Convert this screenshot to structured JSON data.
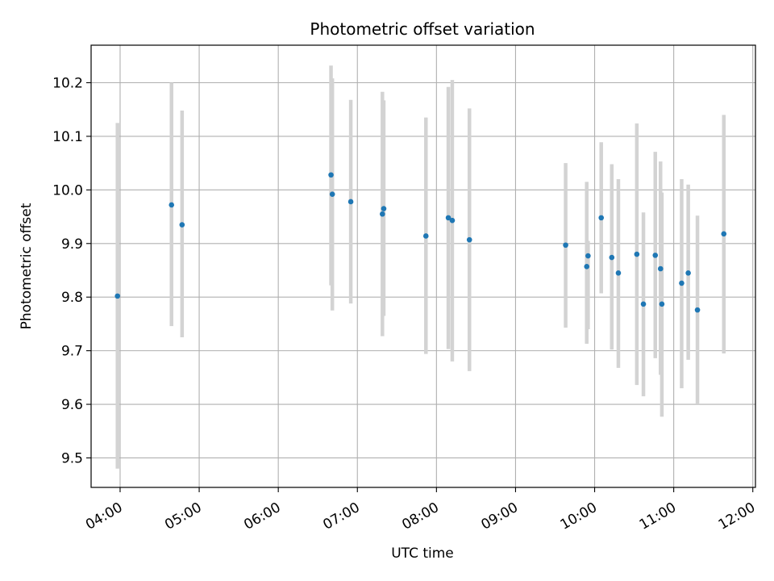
{
  "chart_data": {
    "type": "scatter",
    "title": "Photometric offset variation",
    "xlabel": "UTC time",
    "ylabel": "Photometric offset",
    "grid": true,
    "error_bars": true,
    "xlim": [
      "03:38",
      "12:02"
    ],
    "ylim": [
      9.445,
      10.27
    ],
    "x_ticks": [
      "04:00",
      "05:00",
      "06:00",
      "07:00",
      "08:00",
      "09:00",
      "10:00",
      "11:00",
      "12:00"
    ],
    "y_ticks": [
      9.5,
      9.6,
      9.7,
      9.8,
      9.9,
      10.0,
      10.1,
      10.2
    ],
    "y_tick_labels": [
      "9.5",
      "9.6",
      "9.7",
      "9.8",
      "9.9",
      "10.0",
      "10.1",
      "10.2"
    ],
    "colors": {
      "points": "#1f77b4",
      "error_bars": "#d3d3d3",
      "grid": "#b0b0b0"
    },
    "points": [
      {
        "x": "03:58",
        "y": 9.802,
        "low": 9.48,
        "high": 10.125
      },
      {
        "x": "04:39",
        "y": 9.972,
        "low": 9.746,
        "high": 10.2
      },
      {
        "x": "04:47",
        "y": 9.935,
        "low": 9.725,
        "high": 10.148
      },
      {
        "x": "06:40",
        "y": 10.028,
        "low": 9.822,
        "high": 10.232
      },
      {
        "x": "06:41",
        "y": 9.992,
        "low": 9.775,
        "high": 10.208
      },
      {
        "x": "06:55",
        "y": 9.978,
        "low": 9.788,
        "high": 10.168
      },
      {
        "x": "07:19",
        "y": 9.955,
        "low": 9.727,
        "high": 10.183
      },
      {
        "x": "07:20",
        "y": 9.965,
        "low": 9.765,
        "high": 10.167
      },
      {
        "x": "07:52",
        "y": 9.914,
        "low": 9.694,
        "high": 10.135
      },
      {
        "x": "08:09",
        "y": 9.948,
        "low": 9.703,
        "high": 10.192
      },
      {
        "x": "08:12",
        "y": 9.943,
        "low": 9.68,
        "high": 10.205
      },
      {
        "x": "08:25",
        "y": 9.907,
        "low": 9.662,
        "high": 10.152
      },
      {
        "x": "09:38",
        "y": 9.897,
        "low": 9.743,
        "high": 10.05
      },
      {
        "x": "09:54",
        "y": 9.857,
        "low": 9.713,
        "high": 10.015
      },
      {
        "x": "09:55",
        "y": 9.877,
        "low": 9.74,
        "high": 9.905
      },
      {
        "x": "10:05",
        "y": 9.948,
        "low": 9.807,
        "high": 10.089
      },
      {
        "x": "10:13",
        "y": 9.874,
        "low": 9.702,
        "high": 10.048
      },
      {
        "x": "10:18",
        "y": 9.845,
        "low": 9.668,
        "high": 10.02
      },
      {
        "x": "10:32",
        "y": 9.88,
        "low": 9.636,
        "high": 10.124
      },
      {
        "x": "10:37",
        "y": 9.787,
        "low": 9.615,
        "high": 9.958
      },
      {
        "x": "10:46",
        "y": 9.878,
        "low": 9.686,
        "high": 10.071
      },
      {
        "x": "10:50",
        "y": 9.853,
        "low": 9.655,
        "high": 10.053
      },
      {
        "x": "10:51",
        "y": 9.787,
        "low": 9.577,
        "high": 9.995
      },
      {
        "x": "11:06",
        "y": 9.826,
        "low": 9.63,
        "high": 10.02
      },
      {
        "x": "11:11",
        "y": 9.845,
        "low": 9.683,
        "high": 10.01
      },
      {
        "x": "11:18",
        "y": 9.776,
        "low": 9.6,
        "high": 9.952
      },
      {
        "x": "11:38",
        "y": 9.918,
        "low": 9.695,
        "high": 10.14
      }
    ]
  }
}
